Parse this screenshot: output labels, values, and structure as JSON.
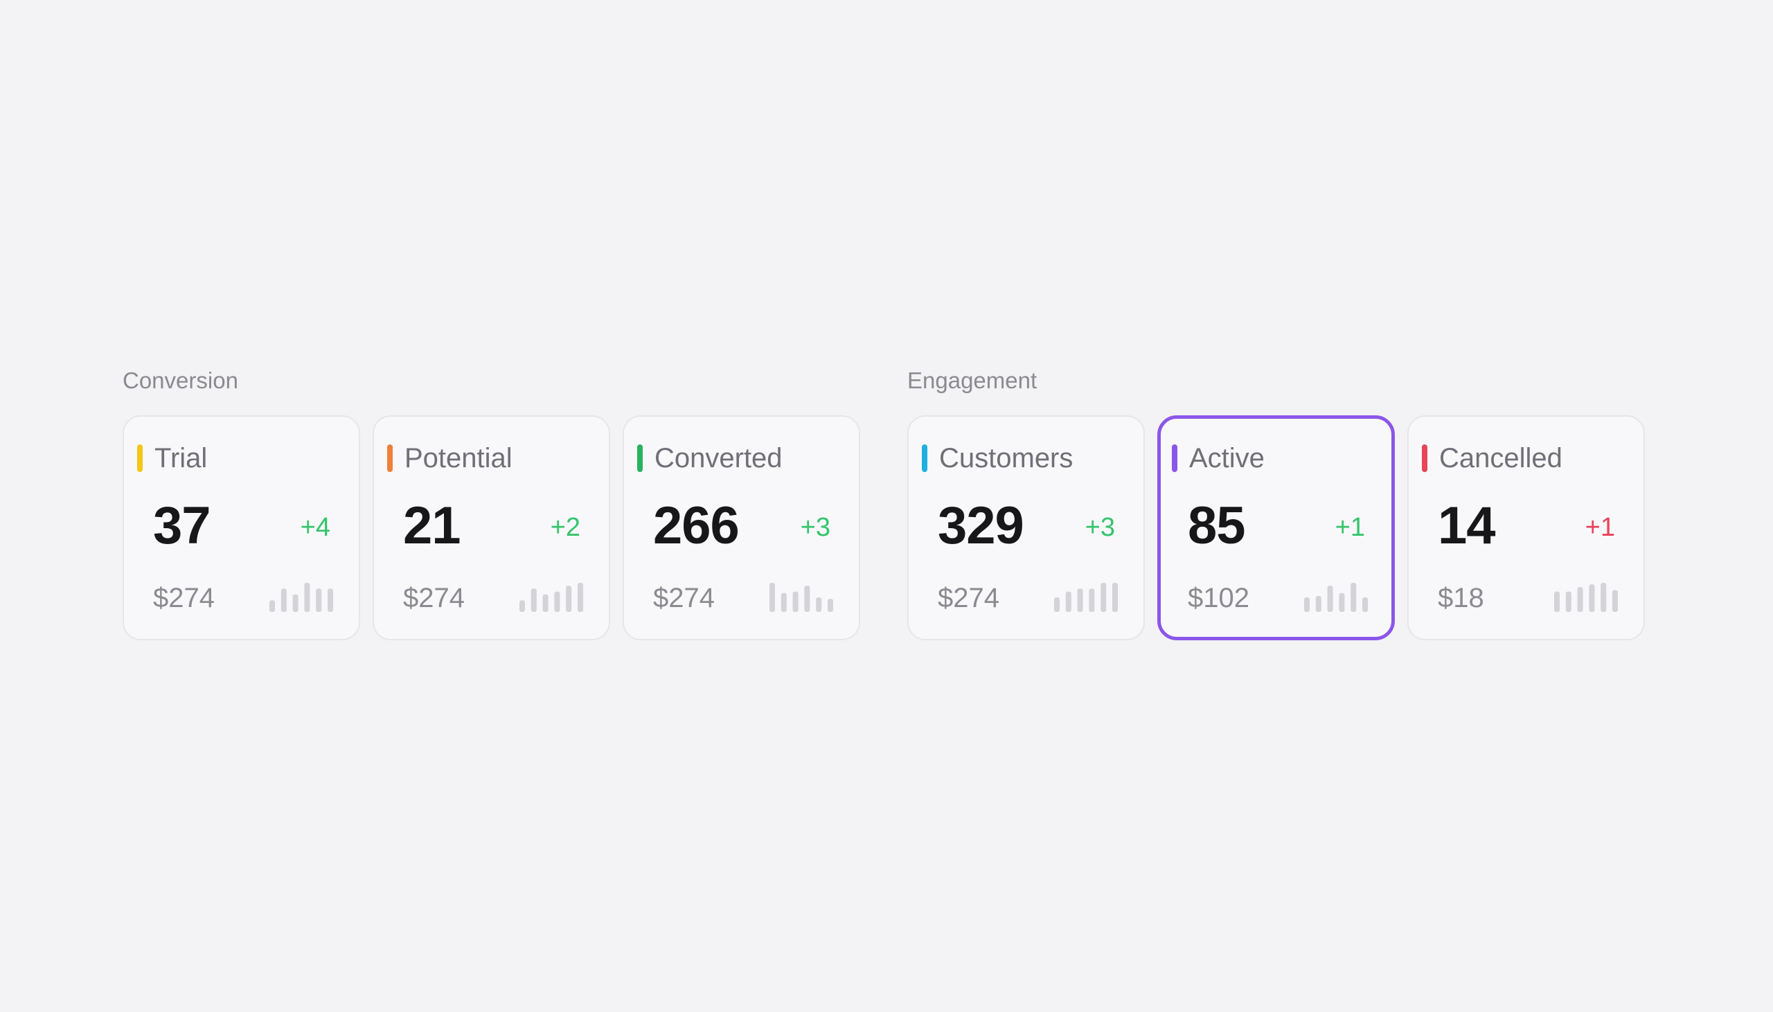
{
  "groups": [
    {
      "title": "Conversion",
      "cards": [
        {
          "label": "Trial",
          "value": "37",
          "delta": "+4",
          "amount": "$274",
          "accent": "#f5c518",
          "delta_color": "#35c46b",
          "spark": [
            0.4,
            0.8,
            0.6,
            1.0,
            0.8,
            0.8
          ]
        },
        {
          "label": "Potential",
          "value": "21",
          "delta": "+2",
          "amount": "$274",
          "accent": "#f07f3c",
          "delta_color": "#35c46b",
          "spark": [
            0.4,
            0.8,
            0.6,
            0.7,
            0.9,
            1.0
          ]
        },
        {
          "label": "Converted",
          "value": "266",
          "delta": "+3",
          "amount": "$274",
          "accent": "#29b360",
          "delta_color": "#35c46b",
          "spark": [
            1.0,
            0.65,
            0.7,
            0.9,
            0.5,
            0.45
          ]
        }
      ]
    },
    {
      "title": "Engagement",
      "cards": [
        {
          "label": "Customers",
          "value": "329",
          "delta": "+3",
          "amount": "$274",
          "accent": "#1fb0e0",
          "delta_color": "#35c46b",
          "spark": [
            0.5,
            0.7,
            0.8,
            0.8,
            1.0,
            1.0
          ]
        },
        {
          "label": "Active",
          "value": "85",
          "delta": "+1",
          "amount": "$102",
          "accent": "#8b56ea",
          "delta_color": "#35c46b",
          "selected": true,
          "spark": [
            0.5,
            0.55,
            0.9,
            0.65,
            1.0,
            0.5
          ]
        },
        {
          "label": "Cancelled",
          "value": "14",
          "delta": "+1",
          "amount": "$18",
          "accent": "#e8445b",
          "delta_color": "#e8445b",
          "spark": [
            0.7,
            0.7,
            0.85,
            0.95,
            1.0,
            0.75
          ]
        }
      ]
    }
  ]
}
